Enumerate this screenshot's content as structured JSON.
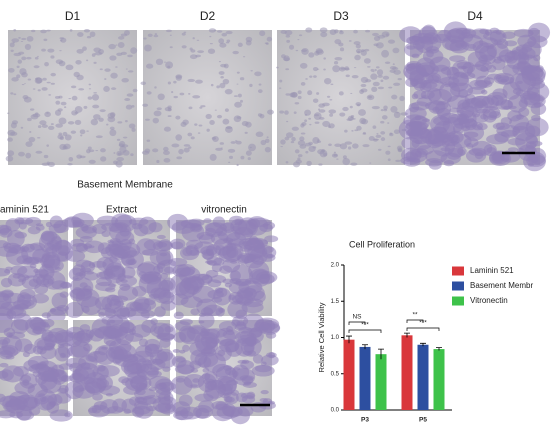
{
  "time_labels": [
    "D1",
    "D2",
    "D3",
    "D4"
  ],
  "group_title": "Basement Membrane",
  "column_labels": [
    "aminin 521",
    "Extract",
    "vitronectin"
  ],
  "chart_data": {
    "type": "bar",
    "title": "Cell Proliferation",
    "y_label": "Relative Cell Viability",
    "categories": [
      "P3",
      "P5"
    ],
    "series": [
      {
        "name": "Laminin 521",
        "color": "#d9373b",
        "values": [
          0.97,
          1.03
        ],
        "errors": [
          0.05,
          0.03
        ]
      },
      {
        "name": "Basement Membr",
        "color": "#2d4fa0",
        "values": [
          0.87,
          0.9
        ],
        "errors": [
          0.03,
          0.02
        ]
      },
      {
        "name": "Vitronectin",
        "color": "#3ec24a",
        "values": [
          0.77,
          0.84
        ],
        "errors": [
          0.07,
          0.02
        ]
      }
    ],
    "ylim": [
      0,
      2
    ],
    "yticks": [
      {
        "value": 0,
        "label": "0.0"
      },
      {
        "value": 0.5,
        "label": "0.5"
      },
      {
        "value": 1,
        "label": "1.0"
      },
      {
        "value": 1.5,
        "label": "1.5"
      },
      {
        "value": 2,
        "label": "2.0"
      }
    ],
    "annotations": [
      "NS",
      "***",
      "**",
      "***"
    ]
  }
}
